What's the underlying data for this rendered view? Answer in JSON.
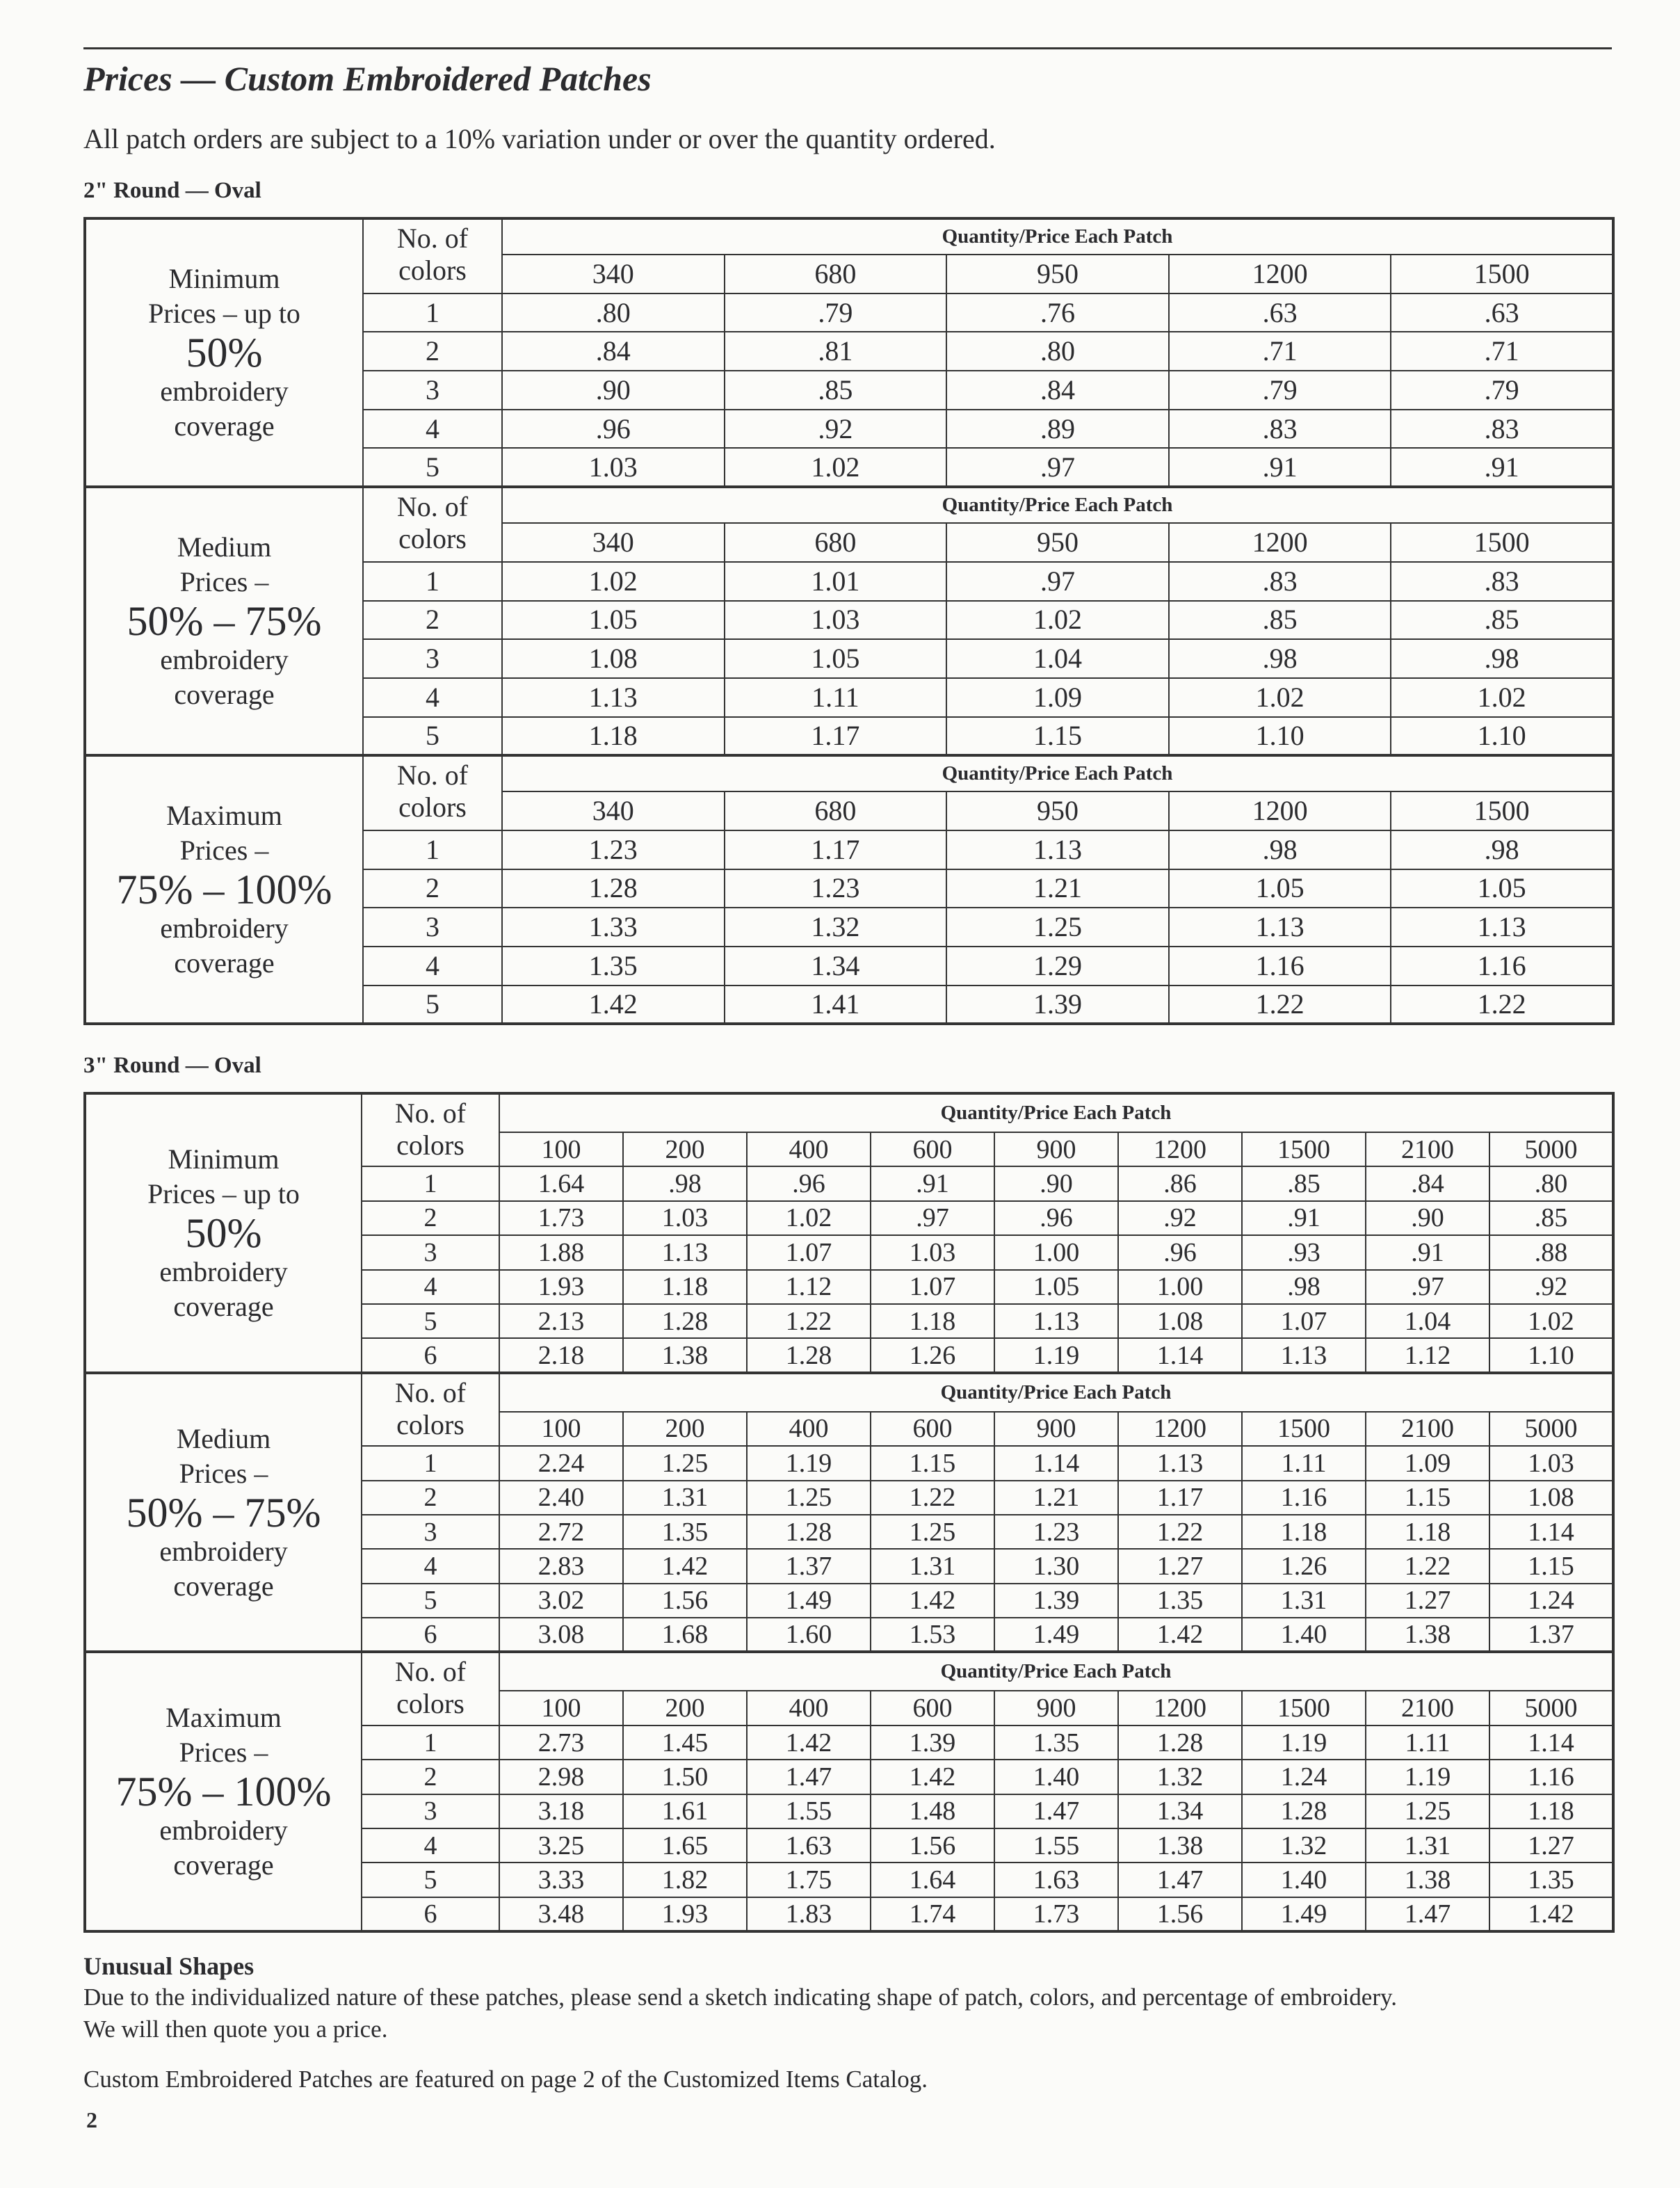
{
  "header": {
    "title": "Prices — Custom Embroidered Patches",
    "subtitle": "All patch orders are subject to a 10% variation under or over the quantity ordered."
  },
  "sections": [
    {
      "title": "2\" Round — Oval",
      "groups": [
        {
          "label_top": [
            "Minimum",
            "Prices – up to"
          ],
          "label_big": "50%",
          "label_bottom": [
            "embroidery",
            "coverage"
          ],
          "colors_header": [
            "No. of",
            "colors"
          ],
          "qty_header": "Quantity/Price Each Patch",
          "quantities": [
            340,
            680,
            950,
            1200,
            1500
          ],
          "colors": [
            1,
            2,
            3,
            4,
            5
          ],
          "prices": [
            [
              ".80",
              ".79",
              ".76",
              ".63",
              ".63"
            ],
            [
              ".84",
              ".81",
              ".80",
              ".71",
              ".71"
            ],
            [
              ".90",
              ".85",
              ".84",
              ".79",
              ".79"
            ],
            [
              ".96",
              ".92",
              ".89",
              ".83",
              ".83"
            ],
            [
              "1.03",
              "1.02",
              ".97",
              ".91",
              ".91"
            ]
          ]
        },
        {
          "label_top": [
            "Medium",
            "Prices –"
          ],
          "label_big": "50% – 75%",
          "label_bottom": [
            "embroidery",
            "coverage"
          ],
          "colors_header": [
            "No. of",
            "colors"
          ],
          "qty_header": "Quantity/Price Each Patch",
          "quantities": [
            340,
            680,
            950,
            1200,
            1500
          ],
          "colors": [
            1,
            2,
            3,
            4,
            5
          ],
          "prices": [
            [
              "1.02",
              "1.01",
              ".97",
              ".83",
              ".83"
            ],
            [
              "1.05",
              "1.03",
              "1.02",
              ".85",
              ".85"
            ],
            [
              "1.08",
              "1.05",
              "1.04",
              ".98",
              ".98"
            ],
            [
              "1.13",
              "1.11",
              "1.09",
              "1.02",
              "1.02"
            ],
            [
              "1.18",
              "1.17",
              "1.15",
              "1.10",
              "1.10"
            ]
          ]
        },
        {
          "label_top": [
            "Maximum",
            "Prices –"
          ],
          "label_big": "75% – 100%",
          "label_bottom": [
            "embroidery",
            "coverage"
          ],
          "colors_header": [
            "No. of",
            "colors"
          ],
          "qty_header": "Quantity/Price Each Patch",
          "quantities": [
            340,
            680,
            950,
            1200,
            1500
          ],
          "colors": [
            1,
            2,
            3,
            4,
            5
          ],
          "prices": [
            [
              "1.23",
              "1.17",
              "1.13",
              ".98",
              ".98"
            ],
            [
              "1.28",
              "1.23",
              "1.21",
              "1.05",
              "1.05"
            ],
            [
              "1.33",
              "1.32",
              "1.25",
              "1.13",
              "1.13"
            ],
            [
              "1.35",
              "1.34",
              "1.29",
              "1.16",
              "1.16"
            ],
            [
              "1.42",
              "1.41",
              "1.39",
              "1.22",
              "1.22"
            ]
          ]
        }
      ]
    },
    {
      "title": "3\" Round — Oval",
      "groups": [
        {
          "label_top": [
            "Minimum",
            "Prices – up to"
          ],
          "label_big": "50%",
          "label_bottom": [
            "embroidery",
            "coverage"
          ],
          "colors_header": [
            "No. of",
            "colors"
          ],
          "qty_header": "Quantity/Price Each Patch",
          "quantities": [
            100,
            200,
            400,
            600,
            900,
            1200,
            1500,
            2100,
            5000
          ],
          "colors": [
            1,
            2,
            3,
            4,
            5,
            6
          ],
          "prices": [
            [
              "1.64",
              ".98",
              ".96",
              ".91",
              ".90",
              ".86",
              ".85",
              ".84",
              ".80"
            ],
            [
              "1.73",
              "1.03",
              "1.02",
              ".97",
              ".96",
              ".92",
              ".91",
              ".90",
              ".85"
            ],
            [
              "1.88",
              "1.13",
              "1.07",
              "1.03",
              "1.00",
              ".96",
              ".93",
              ".91",
              ".88"
            ],
            [
              "1.93",
              "1.18",
              "1.12",
              "1.07",
              "1.05",
              "1.00",
              ".98",
              ".97",
              ".92"
            ],
            [
              "2.13",
              "1.28",
              "1.22",
              "1.18",
              "1.13",
              "1.08",
              "1.07",
              "1.04",
              "1.02"
            ],
            [
              "2.18",
              "1.38",
              "1.28",
              "1.26",
              "1.19",
              "1.14",
              "1.13",
              "1.12",
              "1.10"
            ]
          ]
        },
        {
          "label_top": [
            "Medium",
            "Prices –"
          ],
          "label_big": "50% – 75%",
          "label_bottom": [
            "embroidery",
            "coverage"
          ],
          "colors_header": [
            "No. of",
            "colors"
          ],
          "qty_header": "Quantity/Price Each Patch",
          "quantities": [
            100,
            200,
            400,
            600,
            900,
            1200,
            1500,
            2100,
            5000
          ],
          "colors": [
            1,
            2,
            3,
            4,
            5,
            6
          ],
          "prices": [
            [
              "2.24",
              "1.25",
              "1.19",
              "1.15",
              "1.14",
              "1.13",
              "1.11",
              "1.09",
              "1.03"
            ],
            [
              "2.40",
              "1.31",
              "1.25",
              "1.22",
              "1.21",
              "1.17",
              "1.16",
              "1.15",
              "1.08"
            ],
            [
              "2.72",
              "1.35",
              "1.28",
              "1.25",
              "1.23",
              "1.22",
              "1.18",
              "1.18",
              "1.14"
            ],
            [
              "2.83",
              "1.42",
              "1.37",
              "1.31",
              "1.30",
              "1.27",
              "1.26",
              "1.22",
              "1.15"
            ],
            [
              "3.02",
              "1.56",
              "1.49",
              "1.42",
              "1.39",
              "1.35",
              "1.31",
              "1.27",
              "1.24"
            ],
            [
              "3.08",
              "1.68",
              "1.60",
              "1.53",
              "1.49",
              "1.42",
              "1.40",
              "1.38",
              "1.37"
            ]
          ]
        },
        {
          "label_top": [
            "Maximum",
            "Prices –"
          ],
          "label_big": "75% – 100%",
          "label_bottom": [
            "embroidery",
            "coverage"
          ],
          "colors_header": [
            "No. of",
            "colors"
          ],
          "qty_header": "Quantity/Price Each Patch",
          "quantities": [
            100,
            200,
            400,
            600,
            900,
            1200,
            1500,
            2100,
            5000
          ],
          "colors": [
            1,
            2,
            3,
            4,
            5,
            6
          ],
          "prices": [
            [
              "2.73",
              "1.45",
              "1.42",
              "1.39",
              "1.35",
              "1.28",
              "1.19",
              "1.11",
              "1.14"
            ],
            [
              "2.98",
              "1.50",
              "1.47",
              "1.42",
              "1.40",
              "1.32",
              "1.24",
              "1.19",
              "1.16"
            ],
            [
              "3.18",
              "1.61",
              "1.55",
              "1.48",
              "1.47",
              "1.34",
              "1.28",
              "1.25",
              "1.18"
            ],
            [
              "3.25",
              "1.65",
              "1.63",
              "1.56",
              "1.55",
              "1.38",
              "1.32",
              "1.31",
              "1.27"
            ],
            [
              "3.33",
              "1.82",
              "1.75",
              "1.64",
              "1.63",
              "1.47",
              "1.40",
              "1.38",
              "1.35"
            ],
            [
              "3.48",
              "1.93",
              "1.83",
              "1.74",
              "1.73",
              "1.56",
              "1.49",
              "1.47",
              "1.42"
            ]
          ]
        }
      ]
    }
  ],
  "notes": {
    "heading": "Unusual Shapes",
    "lines": [
      "Due to the individualized nature of these patches, please send a sketch indicating shape of patch, colors, and percentage of embroidery.",
      "We will then quote you a price."
    ]
  },
  "footer": {
    "catalog_note": "Custom Embroidered Patches are featured on page 2 of the Customized Items Catalog.",
    "page_number": 2
  }
}
